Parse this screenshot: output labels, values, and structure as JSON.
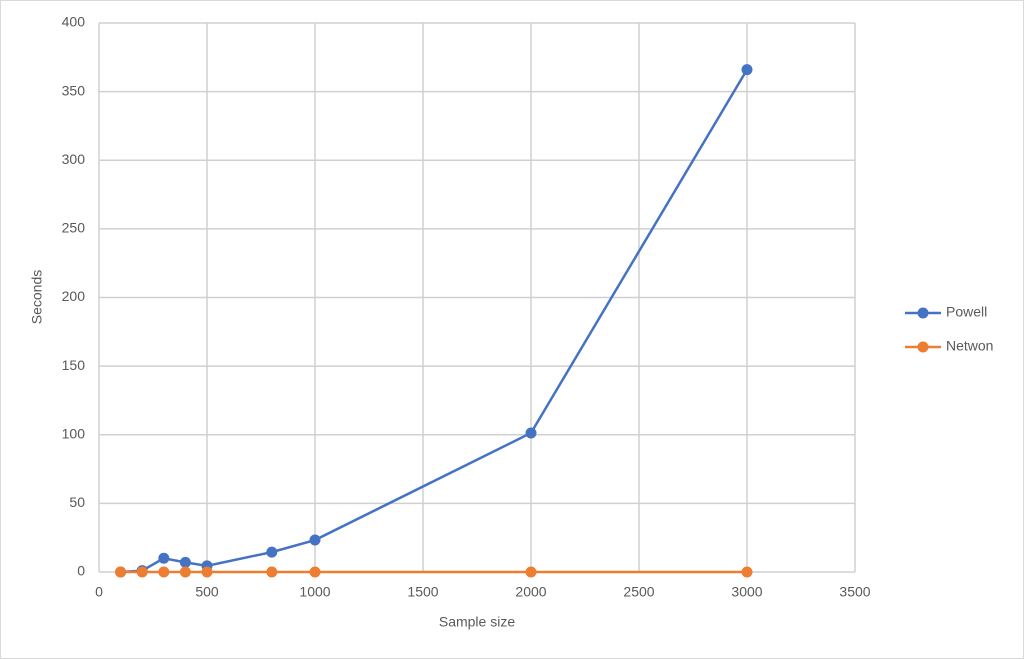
{
  "chart_data": {
    "type": "line",
    "x_label": "Sample size",
    "y_label": "Seconds",
    "x": [
      100,
      200,
      300,
      400,
      500,
      800,
      1000,
      2000,
      3000
    ],
    "series": [
      {
        "name": "Powell",
        "color": "#4472c4",
        "values": [
          0,
          1,
          10,
          7,
          4.5,
          14.5,
          23.3,
          101.3,
          366
        ]
      },
      {
        "name": "Netwon",
        "color": "#ed7d31",
        "values": [
          0,
          0,
          0,
          0,
          0,
          0,
          0,
          0,
          0
        ]
      }
    ],
    "xlim": [
      0,
      3500
    ],
    "xticks": [
      0,
      500,
      1000,
      1500,
      2000,
      2500,
      3000,
      3500
    ],
    "ylim": [
      0,
      400
    ],
    "yticks": [
      0,
      50,
      100,
      150,
      200,
      250,
      300,
      350,
      400
    ],
    "grid": true,
    "legend": "right"
  }
}
